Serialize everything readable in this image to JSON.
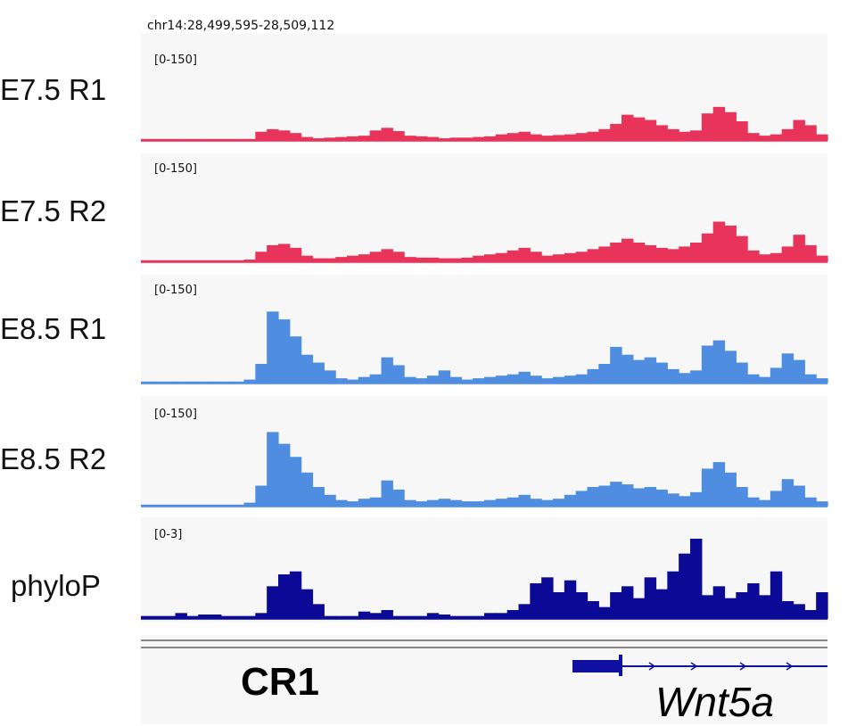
{
  "locus": "chr14:28,499,595-28,509,112",
  "colors": {
    "e75": "#e8345a",
    "e85": "#4f8de0",
    "phylop": "#0a0a96",
    "gene": "#0f0fa0",
    "panel": "#f7f7f7"
  },
  "annotation": "CR1",
  "gene_label": "Wnt5a",
  "chart_data": {
    "type": "area",
    "x_bins": 60,
    "tracks": [
      {
        "label": "E7.5 R1",
        "range_label": "[0-150]",
        "ylim": [
          0,
          150
        ],
        "color": "e75",
        "values": [
          3,
          3,
          3,
          3,
          3,
          3,
          3,
          3,
          3,
          3,
          14,
          18,
          16,
          12,
          6,
          4,
          5,
          6,
          7,
          8,
          16,
          20,
          15,
          8,
          7,
          6,
          4,
          5,
          5,
          6,
          7,
          10,
          12,
          14,
          10,
          8,
          9,
          10,
          12,
          14,
          18,
          26,
          40,
          36,
          32,
          24,
          18,
          14,
          16,
          42,
          52,
          44,
          30,
          12,
          8,
          10,
          18,
          32,
          24,
          10
        ]
      },
      {
        "label": "E7.5 R2",
        "range_label": "[0-150]",
        "ylim": [
          0,
          150
        ],
        "color": "e75",
        "values": [
          3,
          3,
          3,
          3,
          3,
          3,
          3,
          3,
          3,
          4,
          16,
          26,
          28,
          22,
          10,
          6,
          6,
          8,
          10,
          12,
          16,
          20,
          16,
          8,
          7,
          7,
          6,
          6,
          7,
          10,
          12,
          14,
          18,
          22,
          16,
          10,
          12,
          14,
          16,
          20,
          24,
          30,
          36,
          30,
          26,
          22,
          20,
          24,
          30,
          44,
          62,
          56,
          40,
          18,
          12,
          14,
          24,
          42,
          26,
          10
        ]
      },
      {
        "label": "E8.5 R1",
        "range_label": "[0-150]",
        "ylim": [
          0,
          150
        ],
        "color": "e85",
        "values": [
          3,
          3,
          3,
          3,
          3,
          3,
          3,
          3,
          3,
          6,
          30,
          110,
          98,
          72,
          44,
          32,
          20,
          8,
          6,
          10,
          14,
          40,
          28,
          10,
          8,
          12,
          20,
          10,
          6,
          8,
          10,
          12,
          14,
          18,
          12,
          8,
          10,
          12,
          14,
          22,
          30,
          56,
          44,
          36,
          40,
          32,
          22,
          16,
          20,
          58,
          66,
          50,
          32,
          14,
          10,
          24,
          46,
          36,
          14,
          8
        ]
      },
      {
        "label": "E8.5 R2",
        "range_label": "[0-150]",
        "ylim": [
          0,
          150
        ],
        "color": "e85",
        "values": [
          3,
          3,
          3,
          3,
          3,
          3,
          3,
          3,
          3,
          6,
          32,
          114,
          96,
          76,
          52,
          30,
          18,
          10,
          8,
          12,
          14,
          40,
          26,
          10,
          8,
          10,
          12,
          10,
          8,
          8,
          10,
          12,
          14,
          18,
          12,
          10,
          12,
          18,
          24,
          30,
          32,
          38,
          34,
          28,
          30,
          26,
          20,
          16,
          22,
          58,
          68,
          52,
          30,
          14,
          10,
          24,
          42,
          32,
          14,
          8
        ]
      },
      {
        "label": "phyloP",
        "range_label": "[0-3]",
        "ylim": [
          0,
          3
        ],
        "color": "phylop",
        "values": [
          0.1,
          0.1,
          0.1,
          0.2,
          0.1,
          0.15,
          0.15,
          0.1,
          0.1,
          0.1,
          0.2,
          1.1,
          1.5,
          1.6,
          1.0,
          0.5,
          0.1,
          0.1,
          0.1,
          0.25,
          0.2,
          0.3,
          0.1,
          0.1,
          0.1,
          0.2,
          0.15,
          0.1,
          0.1,
          0.1,
          0.2,
          0.2,
          0.3,
          0.5,
          1.2,
          1.4,
          0.9,
          1.3,
          0.9,
          0.6,
          0.4,
          0.9,
          1.1,
          0.7,
          1.4,
          1.0,
          1.6,
          2.2,
          2.7,
          0.8,
          1.1,
          0.7,
          0.9,
          1.2,
          0.8,
          1.6,
          0.6,
          0.5,
          0.3,
          0.9
        ]
      }
    ]
  }
}
